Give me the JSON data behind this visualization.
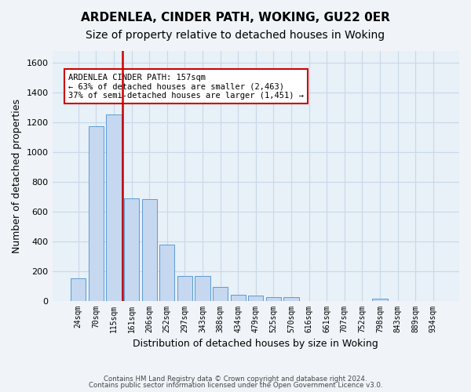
{
  "title": "ARDENLEA, CINDER PATH, WOKING, GU22 0ER",
  "subtitle": "Size of property relative to detached houses in Woking",
  "xlabel": "Distribution of detached houses by size in Woking",
  "ylabel": "Number of detached properties",
  "footer_line1": "Contains HM Land Registry data © Crown copyright and database right 2024.",
  "footer_line2": "Contains public sector information licensed under the Open Government Licence v3.0.",
  "bar_labels": [
    "24sqm",
    "70sqm",
    "115sqm",
    "161sqm",
    "206sqm",
    "252sqm",
    "297sqm",
    "343sqm",
    "388sqm",
    "434sqm",
    "479sqm",
    "525sqm",
    "570sqm",
    "616sqm",
    "661sqm",
    "707sqm",
    "752sqm",
    "798sqm",
    "843sqm",
    "889sqm",
    "934sqm"
  ],
  "bar_values": [
    150,
    1175,
    1255,
    690,
    685,
    375,
    165,
    165,
    95,
    40,
    35,
    22,
    22,
    0,
    0,
    0,
    0,
    15,
    0,
    0,
    0
  ],
  "bar_color": "#c5d8f0",
  "bar_edge_color": "#5b9bd5",
  "vline_x": 2.5,
  "vline_color": "#cc0000",
  "annotation_line1": "ARDENLEA CINDER PATH: 157sqm",
  "annotation_line2": "← 63% of detached houses are smaller (2,463)",
  "annotation_line3": "37% of semi-detached houses are larger (1,451) →",
  "annotation_box_color": "#cc0000",
  "ylim": [
    0,
    1680
  ],
  "yticks": [
    0,
    200,
    400,
    600,
    800,
    1000,
    1200,
    1400,
    1600
  ],
  "grid_color": "#c8d8e8",
  "bg_color": "#e8f0f8",
  "fig_bg_color": "#f0f4f8",
  "title_fontsize": 11,
  "subtitle_fontsize": 10,
  "xlabel_fontsize": 9,
  "ylabel_fontsize": 9
}
